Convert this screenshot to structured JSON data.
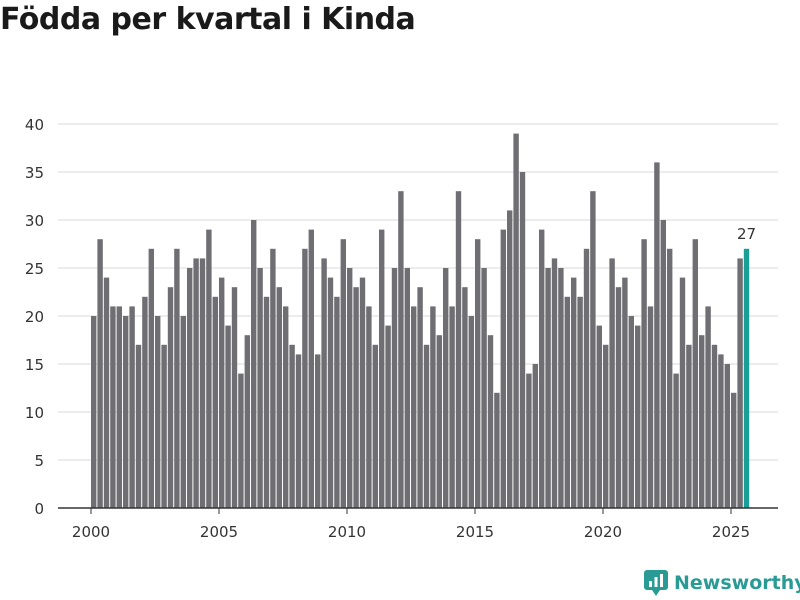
{
  "title": "Födda per kvartal i Kinda",
  "brand": {
    "name": "Newsworthy",
    "icon": "newsworthy-logo-icon",
    "color": "#2a9a94"
  },
  "colors": {
    "bar": "#6e6e73",
    "highlight": "#1a9e96",
    "grid": "#d9d9d9",
    "axis": "#333333",
    "text": "#333333"
  },
  "chart_data": {
    "type": "bar",
    "title": "Födda per kvartal i Kinda",
    "xlabel": "",
    "ylabel": "",
    "ylim": [
      0,
      40
    ],
    "yticks": [
      0,
      5,
      10,
      15,
      20,
      25,
      30,
      35,
      40
    ],
    "xticks": [
      "2000",
      "2005",
      "2010",
      "2015",
      "2020",
      "2025"
    ],
    "start_year": 2000,
    "periods_per_year": 4,
    "values": [
      20,
      28,
      24,
      21,
      21,
      20,
      21,
      17,
      22,
      27,
      20,
      17,
      23,
      27,
      20,
      25,
      26,
      26,
      29,
      22,
      24,
      19,
      23,
      14,
      18,
      30,
      25,
      22,
      27,
      23,
      21,
      17,
      16,
      27,
      29,
      16,
      26,
      24,
      22,
      28,
      25,
      23,
      24,
      21,
      17,
      29,
      19,
      25,
      33,
      25,
      21,
      23,
      17,
      21,
      18,
      25,
      21,
      33,
      23,
      20,
      28,
      25,
      18,
      12,
      29,
      31,
      39,
      35,
      14,
      15,
      29,
      25,
      26,
      25,
      22,
      24,
      22,
      27,
      33,
      19,
      17,
      26,
      23,
      24,
      20,
      19,
      28,
      21,
      36,
      30,
      27,
      14,
      24,
      17,
      28,
      18,
      21,
      17,
      16,
      15,
      12,
      26,
      27
    ],
    "highlight_index": 102,
    "highlight_label": "27"
  }
}
